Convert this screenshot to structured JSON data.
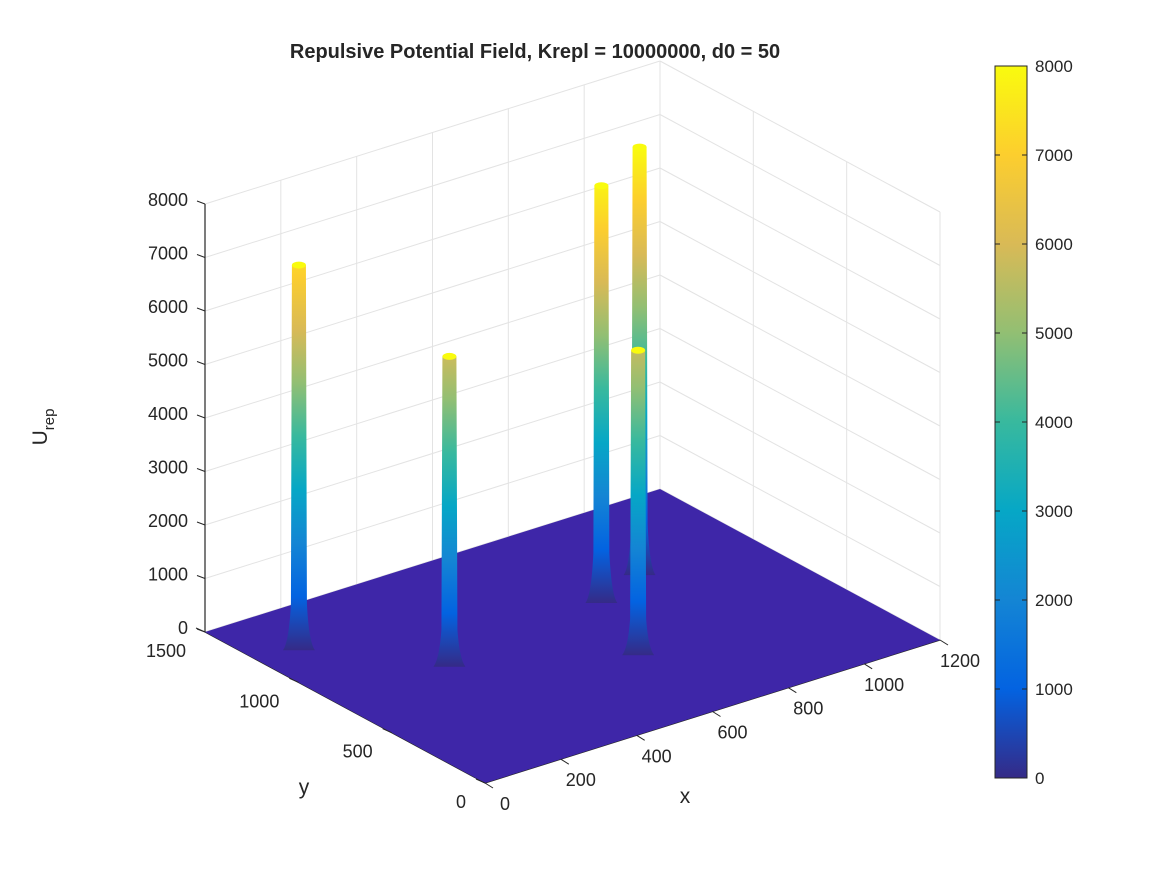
{
  "chart_data": {
    "type": "surface",
    "title": "Repulsive Potential Field, Krepl = 10000000, d0 = 50",
    "xlabel": "x",
    "ylabel": "y",
    "zlabel": "U",
    "zlabel_subscript": "rep",
    "xlim": [
      0,
      1200
    ],
    "ylim": [
      0,
      1500
    ],
    "zlim": [
      0,
      8000
    ],
    "x_ticks": [
      "0",
      "200",
      "400",
      "600",
      "800",
      "1000",
      "1200"
    ],
    "y_ticks": [
      "0",
      "500",
      "1000",
      "1500"
    ],
    "z_ticks": [
      "0",
      "1000",
      "2000",
      "3000",
      "4000",
      "5000",
      "6000",
      "7000",
      "8000"
    ],
    "colorbar": {
      "ticks": [
        "0",
        "1000",
        "2000",
        "3000",
        "4000",
        "5000",
        "6000",
        "7000",
        "8000"
      ],
      "range": [
        0,
        8000
      ],
      "colormap": "parula"
    },
    "grid": true,
    "floor_value": 0,
    "floor_color": "#3e26a8",
    "peaks": [
      {
        "x": 100,
        "y": 1200,
        "z": 7200
      },
      {
        "x": 300,
        "y": 800,
        "z": 5800
      },
      {
        "x": 650,
        "y": 500,
        "z": 5700
      },
      {
        "x": 750,
        "y": 900,
        "z": 7800
      },
      {
        "x": 900,
        "y": 1000,
        "z": 8000
      }
    ],
    "colors": {
      "parula": [
        "#352a87",
        "#0363e1",
        "#1485d4",
        "#06a7c6",
        "#38b99e",
        "#92bf73",
        "#d9ba56",
        "#fcce2e",
        "#f9fb0e"
      ]
    }
  }
}
